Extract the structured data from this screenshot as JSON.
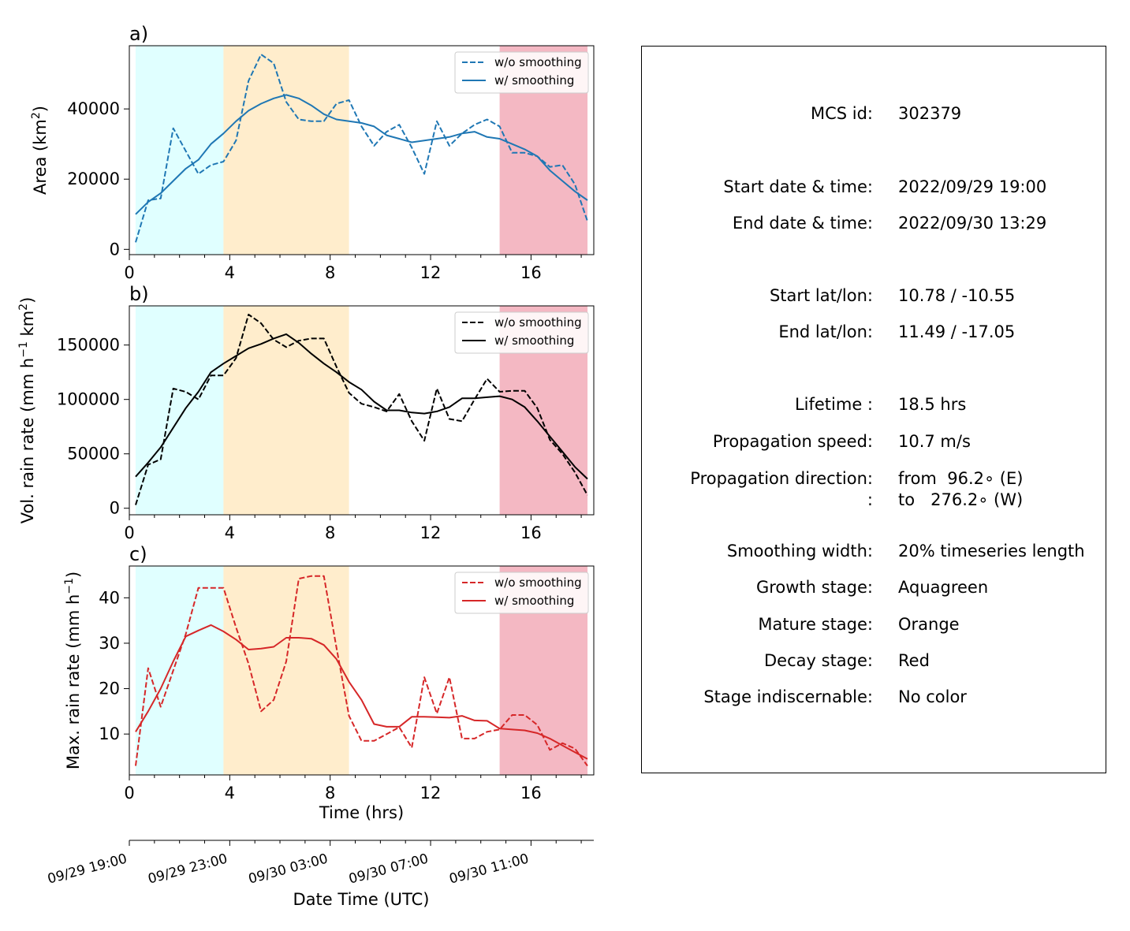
{
  "chart_data": [
    {
      "type": "line",
      "panel_label": "a)",
      "ylabel": "Area  (km²)",
      "xlim": [
        0,
        18.5
      ],
      "ylim": [
        -1500,
        58000
      ],
      "xticks": [
        0,
        4,
        8,
        12,
        16
      ],
      "yticks": [
        0,
        20000,
        40000
      ],
      "ytick_labels": [
        "0",
        "20000",
        "40000"
      ],
      "color": "#1f77b4",
      "legend": {
        "position": "top-right",
        "entries": [
          "w/o smoothing",
          "w/ smoothing"
        ]
      },
      "stages": [
        {
          "stage": "growth",
          "start": 0.25,
          "end": 3.75,
          "color": "#e0ffff"
        },
        {
          "stage": "mature",
          "start": 3.75,
          "end": 8.75,
          "color": "#ffedcc"
        },
        {
          "stage": "decay",
          "start": 14.75,
          "end": 18.25,
          "color": "#f4b8c3"
        }
      ],
      "series": [
        {
          "name": "w/o smoothing",
          "style": "dashed",
          "x": [
            0.25,
            0.75,
            1.25,
            1.75,
            2.25,
            2.75,
            3.25,
            3.75,
            4.25,
            4.75,
            5.25,
            5.75,
            6.25,
            6.75,
            7.25,
            7.75,
            8.25,
            8.75,
            9.25,
            9.75,
            10.25,
            10.75,
            11.25,
            11.75,
            12.25,
            12.75,
            13.25,
            13.75,
            14.25,
            14.75,
            15.25,
            15.75,
            16.25,
            16.75,
            17.25,
            17.75,
            18.25
          ],
          "y": [
            2000,
            14000,
            14500,
            34500,
            28000,
            21500,
            24000,
            25000,
            31000,
            48000,
            55500,
            53000,
            42000,
            37000,
            36500,
            36500,
            41500,
            42500,
            35000,
            29500,
            33500,
            35500,
            29000,
            21500,
            36500,
            29500,
            33000,
            35500,
            37000,
            35000,
            27500,
            27500,
            26500,
            23500,
            24000,
            18500,
            8000
          ]
        },
        {
          "name": "w/ smoothing",
          "style": "solid",
          "x": [
            0.25,
            0.75,
            1.25,
            1.75,
            2.25,
            2.75,
            3.25,
            3.75,
            4.25,
            4.75,
            5.25,
            5.75,
            6.25,
            6.75,
            7.25,
            7.75,
            8.25,
            8.75,
            9.25,
            9.75,
            10.25,
            10.75,
            11.25,
            11.75,
            12.25,
            12.75,
            13.25,
            13.75,
            14.25,
            14.75,
            15.25,
            15.75,
            16.25,
            16.75,
            17.25,
            17.75,
            18.25
          ],
          "y": [
            10000,
            13500,
            16000,
            19500,
            23000,
            25500,
            30000,
            33000,
            36500,
            39500,
            41500,
            43000,
            44000,
            43000,
            41000,
            38500,
            37000,
            36500,
            36000,
            35000,
            32500,
            31500,
            30500,
            31000,
            31500,
            32000,
            33000,
            33500,
            32000,
            31500,
            30000,
            28500,
            26500,
            22500,
            19500,
            16500,
            14000
          ]
        }
      ]
    },
    {
      "type": "line",
      "panel_label": "b)",
      "ylabel": "Vol. rain rate (mm h⁻¹ km²)",
      "xlim": [
        0,
        18.5
      ],
      "ylim": [
        -6000,
        186000
      ],
      "xticks": [
        0,
        4,
        8,
        12,
        16
      ],
      "yticks": [
        0,
        50000,
        100000,
        150000
      ],
      "ytick_labels": [
        "0",
        "50000",
        "100000",
        "150000"
      ],
      "color": "#000000",
      "legend": {
        "position": "top-right",
        "entries": [
          "w/o smoothing",
          "w/ smoothing"
        ]
      },
      "stages": [
        {
          "stage": "growth",
          "start": 0.25,
          "end": 3.75,
          "color": "#e0ffff"
        },
        {
          "stage": "mature",
          "start": 3.75,
          "end": 8.75,
          "color": "#ffedcc"
        },
        {
          "stage": "decay",
          "start": 14.75,
          "end": 18.25,
          "color": "#f4b8c3"
        }
      ],
      "series": [
        {
          "name": "w/o smoothing",
          "style": "dashed",
          "x": [
            0.25,
            0.75,
            1.25,
            1.75,
            2.25,
            2.75,
            3.25,
            3.75,
            4.25,
            4.75,
            5.25,
            5.75,
            6.25,
            6.75,
            7.25,
            7.75,
            8.25,
            8.75,
            9.25,
            9.75,
            10.25,
            10.75,
            11.25,
            11.75,
            12.25,
            12.75,
            13.25,
            13.75,
            14.25,
            14.75,
            15.25,
            15.75,
            16.25,
            16.75,
            17.25,
            17.75,
            18.25
          ],
          "y": [
            3000,
            40000,
            45000,
            110000,
            107000,
            100000,
            122000,
            122000,
            138000,
            178000,
            170000,
            155000,
            148000,
            154000,
            156000,
            156000,
            130000,
            106000,
            96000,
            93000,
            89000,
            105000,
            80000,
            62000,
            110000,
            82000,
            80000,
            100000,
            119000,
            107000,
            108000,
            108000,
            92000,
            63000,
            50000,
            33000,
            12000
          ]
        },
        {
          "name": "w/ smoothing",
          "style": "solid",
          "x": [
            0.25,
            0.75,
            1.25,
            1.75,
            2.25,
            2.75,
            3.25,
            3.75,
            4.25,
            4.75,
            5.25,
            5.75,
            6.25,
            6.75,
            7.25,
            7.75,
            8.25,
            8.75,
            9.25,
            9.75,
            10.25,
            10.75,
            11.25,
            11.75,
            12.25,
            12.75,
            13.25,
            13.75,
            14.25,
            14.75,
            15.25,
            15.75,
            16.25,
            16.75,
            17.25,
            17.75,
            18.25
          ],
          "y": [
            29000,
            42000,
            56000,
            74000,
            92000,
            107000,
            125000,
            133000,
            140000,
            147000,
            151000,
            156000,
            160000,
            152000,
            142000,
            133000,
            125000,
            116000,
            109000,
            98000,
            90000,
            90000,
            88000,
            87000,
            89000,
            93000,
            101000,
            101000,
            102000,
            103000,
            100000,
            93000,
            80000,
            66000,
            52000,
            38000,
            27000
          ]
        }
      ]
    },
    {
      "type": "line",
      "panel_label": "c)",
      "ylabel": "Max. rain rate  (mm h⁻¹)",
      "xlim": [
        0,
        18.5
      ],
      "ylim": [
        1,
        47
      ],
      "xticks": [
        0,
        4,
        8,
        12,
        16
      ],
      "yticks": [
        10,
        20,
        30,
        40
      ],
      "ytick_labels": [
        "10",
        "20",
        "30",
        "40"
      ],
      "xlabel": "Time (hrs)",
      "color": "#d62728",
      "legend": {
        "position": "top-right",
        "entries": [
          "w/o smoothing",
          "w/ smoothing"
        ]
      },
      "stages": [
        {
          "stage": "growth",
          "start": 0.25,
          "end": 3.75,
          "color": "#e0ffff"
        },
        {
          "stage": "mature",
          "start": 3.75,
          "end": 8.75,
          "color": "#ffedcc"
        },
        {
          "stage": "decay",
          "start": 14.75,
          "end": 18.25,
          "color": "#f4b8c3"
        }
      ],
      "series": [
        {
          "name": "w/o smoothing",
          "style": "dashed",
          "x": [
            0.25,
            0.75,
            1.25,
            1.75,
            2.25,
            2.75,
            3.25,
            3.75,
            4.25,
            4.75,
            5.25,
            5.75,
            6.25,
            6.75,
            7.25,
            7.75,
            8.25,
            8.75,
            9.25,
            9.75,
            10.25,
            10.75,
            11.25,
            11.75,
            12.25,
            12.75,
            13.25,
            13.75,
            14.25,
            14.75,
            15.25,
            15.75,
            16.25,
            16.75,
            17.25,
            17.75,
            18.25
          ],
          "y": [
            3,
            24.5,
            16,
            24,
            32,
            42.2,
            42.2,
            42.2,
            33.5,
            25.5,
            15,
            17.5,
            26,
            44.2,
            44.8,
            44.8,
            29,
            14,
            8.5,
            8.5,
            10,
            11.5,
            7,
            22.5,
            14.5,
            22.5,
            9,
            9,
            10.5,
            11,
            14.2,
            14.2,
            12,
            6.5,
            8,
            6.8,
            3
          ]
        },
        {
          "name": "w/ smoothing",
          "style": "solid",
          "x": [
            0.25,
            0.75,
            1.25,
            1.75,
            2.25,
            2.75,
            3.25,
            3.75,
            4.25,
            4.75,
            5.25,
            5.75,
            6.25,
            6.75,
            7.25,
            7.75,
            8.25,
            8.75,
            9.25,
            9.75,
            10.25,
            10.75,
            11.25,
            11.75,
            12.25,
            12.75,
            13.25,
            13.75,
            14.25,
            14.75,
            15.25,
            15.75,
            16.25,
            16.75,
            17.25,
            17.75,
            18.25
          ],
          "y": [
            10.5,
            15,
            20,
            26,
            31.5,
            32.8,
            34,
            32.6,
            30.8,
            28.6,
            28.8,
            29.2,
            31.2,
            31.2,
            31,
            29.6,
            26.5,
            21.5,
            17.5,
            12.2,
            11.6,
            11.6,
            13.8,
            13.8,
            13.7,
            13.6,
            14,
            13,
            12.9,
            11.2,
            11,
            10.8,
            10.2,
            9,
            7.5,
            6,
            4.5
          ]
        }
      ]
    }
  ],
  "secondary_axis": {
    "xlabel": "Date Time (UTC)",
    "tick_positions": [
      0,
      4,
      8,
      12,
      16
    ],
    "tick_labels": [
      "09/29 19:00",
      "09/29 23:00",
      "09/30 03:00",
      "09/30 07:00",
      "09/30 11:00"
    ]
  },
  "info": [
    {
      "label": "MCS id:",
      "value": "302379"
    },
    {
      "label": "Start date & time:",
      "value": "2022/09/29 19:00"
    },
    {
      "label": "End date & time:",
      "value": "2022/09/30 13:29"
    },
    {
      "label": "Start lat/lon:",
      "value": "10.78 / -10.55"
    },
    {
      "label": "End lat/lon:",
      "value": "11.49 / -17.05"
    },
    {
      "label": "Lifetime :",
      "value": "18.5 hrs"
    },
    {
      "label": "Propagation speed:",
      "value": "10.7 m/s"
    },
    {
      "label": "Propagation direction:",
      "value": "from  96.2∘ (E)"
    },
    {
      "label": ":",
      "value": "to   276.2∘ (W)"
    },
    {
      "label": "Smoothing width:",
      "value": "20% timeseries length"
    },
    {
      "label": "Growth stage:",
      "value": "Aquagreen"
    },
    {
      "label": "Mature stage:",
      "value": "Orange"
    },
    {
      "label": "Decay stage:",
      "value": "Red"
    },
    {
      "label": "Stage indiscernable:",
      "value": "No color"
    }
  ]
}
